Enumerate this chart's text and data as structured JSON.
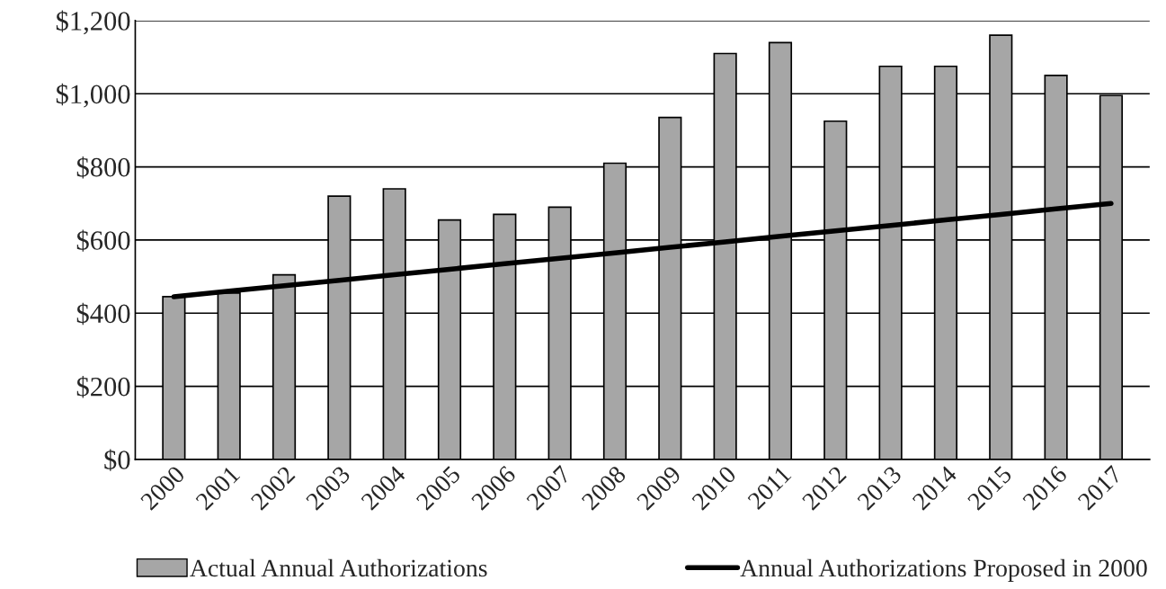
{
  "chart_data": {
    "type": "bar",
    "categories": [
      "2000",
      "2001",
      "2002",
      "2003",
      "2004",
      "2005",
      "2006",
      "2007",
      "2008",
      "2009",
      "2010",
      "2011",
      "2012",
      "2013",
      "2014",
      "2015",
      "2016",
      "2017"
    ],
    "series": [
      {
        "name": "Actual Annual Authorizations",
        "color": "#a6a6a6",
        "values": [
          445,
          455,
          505,
          720,
          740,
          655,
          670,
          690,
          810,
          935,
          1110,
          1140,
          925,
          1075,
          1075,
          1160,
          1050,
          995
        ]
      },
      {
        "name": "Annual Authorizations Proposed in 2000",
        "type": "line",
        "color": "#000000",
        "values": [
          445,
          460,
          475,
          490,
          505,
          520,
          535,
          550,
          565,
          580,
          595,
          610,
          625,
          640,
          655,
          670,
          685,
          700
        ]
      }
    ],
    "ylim": [
      0,
      1200
    ],
    "yticks": [
      {
        "value": 0,
        "label": "$0"
      },
      {
        "value": 200,
        "label": "$200"
      },
      {
        "value": 400,
        "label": "$400"
      },
      {
        "value": 600,
        "label": "$600"
      },
      {
        "value": 800,
        "label": "$800"
      },
      {
        "value": 1000,
        "label": "$1,000"
      },
      {
        "value": 1200,
        "label": "$1,200"
      }
    ],
    "grid": "y",
    "legend": "bottom",
    "marker": "none",
    "line_style": "solid"
  }
}
